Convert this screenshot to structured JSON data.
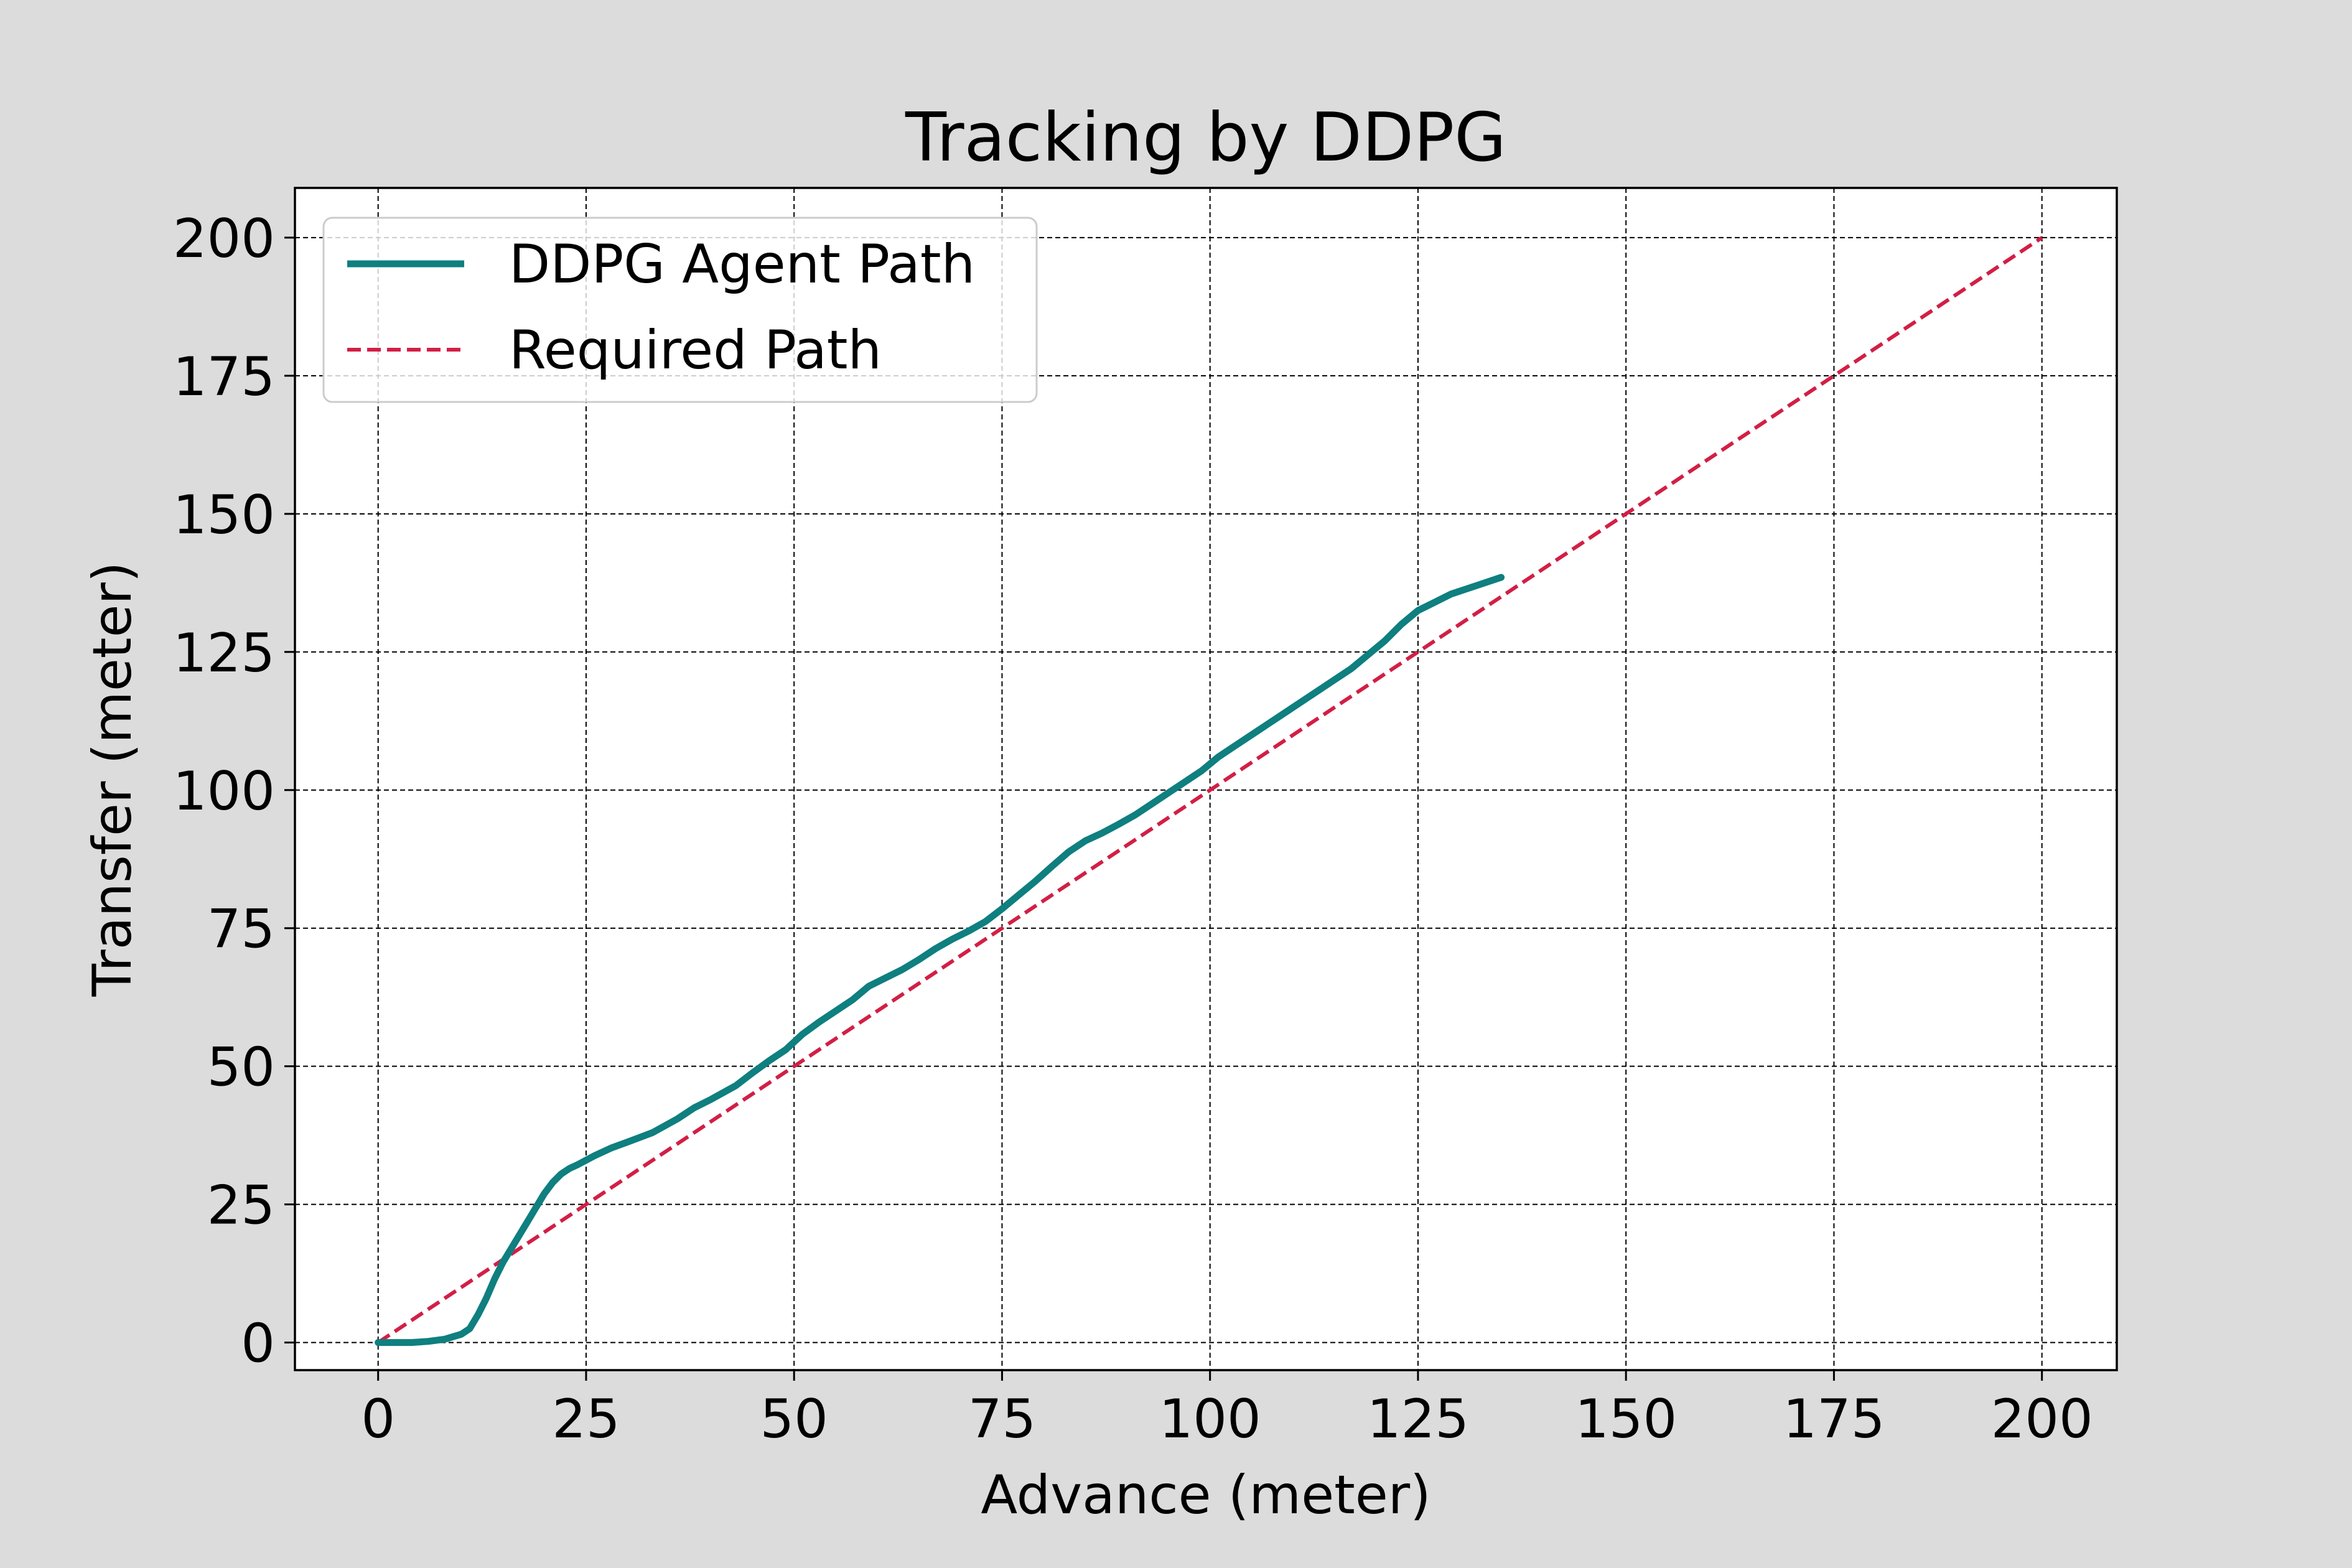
{
  "chart_data": {
    "type": "line",
    "title": "Tracking by DDPG",
    "xlabel": "Advance (meter)",
    "ylabel": "Transfer (meter)",
    "xlim": [
      -10,
      209
    ],
    "ylim": [
      -5,
      209
    ],
    "xticks": [
      0,
      25,
      50,
      75,
      100,
      125,
      150,
      175,
      200
    ],
    "yticks": [
      0,
      25,
      50,
      75,
      100,
      125,
      150,
      175,
      200
    ],
    "xtick_labels": [
      "0",
      "25",
      "50",
      "75",
      "100",
      "125",
      "150",
      "175",
      "200"
    ],
    "ytick_labels": [
      "0",
      "25",
      "50",
      "75",
      "100",
      "125",
      "150",
      "175",
      "200"
    ],
    "grid": true,
    "legend": "top-left",
    "series": [
      {
        "name": "DDPG Agent Path",
        "color": "#0f7f7f",
        "style": "solid",
        "x": [
          0,
          2,
          4,
          6,
          8,
          10,
          11,
          12,
          13,
          14,
          15,
          16,
          17,
          18,
          19,
          20,
          21,
          22,
          23,
          24,
          25,
          26,
          28,
          30,
          33,
          36,
          38,
          40,
          43,
          45,
          47,
          49,
          51,
          53,
          55,
          57,
          59,
          61,
          63,
          65,
          67,
          69,
          71,
          73,
          75,
          77,
          79,
          81,
          83,
          85,
          87,
          89,
          91,
          93,
          95,
          97,
          99,
          101,
          103,
          105,
          107,
          109,
          111,
          113,
          115,
          117,
          119,
          121,
          123,
          125,
          127,
          129,
          131,
          133,
          135
        ],
        "y": [
          0,
          0,
          0,
          0.2,
          0.6,
          1.5,
          2.5,
          5,
          8,
          11.5,
          14.5,
          17,
          19.5,
          22,
          24.5,
          27,
          29,
          30.5,
          31.5,
          32.2,
          33,
          33.8,
          35.2,
          36.3,
          38,
          40.5,
          42.5,
          44,
          46.5,
          48.8,
          51,
          53,
          55.8,
          58,
          60,
          62,
          64.5,
          66,
          67.5,
          69.3,
          71.3,
          73,
          74.5,
          76.2,
          78.5,
          81,
          83.5,
          86.2,
          88.8,
          90.8,
          92.2,
          93.8,
          95.5,
          97.5,
          99.5,
          101.5,
          103.5,
          106,
          108,
          110,
          112,
          114,
          116,
          118,
          120,
          122,
          124.5,
          127,
          130,
          132.5,
          134,
          135.5,
          136.5,
          137.5,
          138.5
        ]
      },
      {
        "name": "Required Path",
        "color": "#d21f45",
        "style": "dashed",
        "x": [
          0,
          200
        ],
        "y": [
          0,
          200
        ]
      }
    ]
  }
}
